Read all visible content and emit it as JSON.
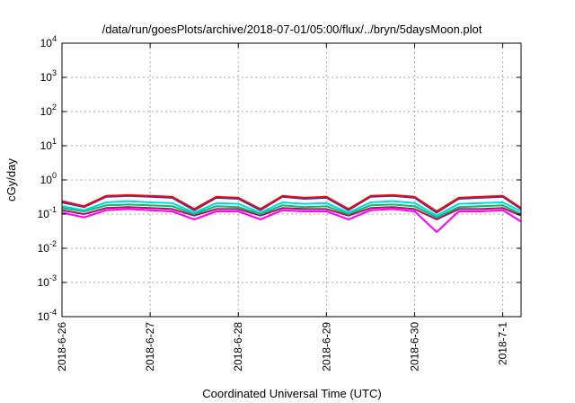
{
  "chart_data": {
    "type": "line",
    "title": "/data/run/goesPlots/archive/2018-07-01/05:00/flux/../bryn/5daysMoon.plot",
    "xlabel": "Coordinated Universal Time (UTC)",
    "ylabel": "cGy/day",
    "yscale": "log",
    "ylim": [
      0.0001,
      10000
    ],
    "xlim": [
      "2018-06-26 00:00",
      "2018-07-01 05:00"
    ],
    "grid": true,
    "y_ticks": [
      {
        "value": 0.0001,
        "base": "10",
        "exp": "-4"
      },
      {
        "value": 0.001,
        "base": "10",
        "exp": "-3"
      },
      {
        "value": 0.01,
        "base": "10",
        "exp": "-2"
      },
      {
        "value": 0.1,
        "base": "10",
        "exp": "-1"
      },
      {
        "value": 1,
        "base": "10",
        "exp": "0"
      },
      {
        "value": 10,
        "base": "10",
        "exp": "1"
      },
      {
        "value": 100,
        "base": "10",
        "exp": "2"
      },
      {
        "value": 1000,
        "base": "10",
        "exp": "3"
      },
      {
        "value": 10000,
        "base": "10",
        "exp": "4"
      }
    ],
    "x_ticks": [
      "2018-6-26",
      "2018-6-27",
      "2018-6-28",
      "2018-6-29",
      "2018-6-30",
      "2018-7-1"
    ],
    "x": [
      "2018-06-26 00:00",
      "2018-06-26 06:00",
      "2018-06-26 12:00",
      "2018-06-26 18:00",
      "2018-06-27 00:00",
      "2018-06-27 06:00",
      "2018-06-27 12:00",
      "2018-06-27 18:00",
      "2018-06-28 00:00",
      "2018-06-28 06:00",
      "2018-06-28 12:00",
      "2018-06-28 18:00",
      "2018-06-29 00:00",
      "2018-06-29 06:00",
      "2018-06-29 12:00",
      "2018-06-29 18:00",
      "2018-06-30 00:00",
      "2018-06-30 06:00",
      "2018-06-30 12:00",
      "2018-06-30 18:00",
      "2018-07-01 00:00",
      "2018-07-01 05:00"
    ],
    "series": [
      {
        "color": "#ff0000",
        "values": [
          0.24,
          0.17,
          0.34,
          0.36,
          0.34,
          0.32,
          0.14,
          0.32,
          0.3,
          0.14,
          0.34,
          0.3,
          0.32,
          0.14,
          0.34,
          0.36,
          0.32,
          0.12,
          0.3,
          0.32,
          0.34,
          0.15
        ]
      },
      {
        "color": "#1a3fd0",
        "values": [
          0.22,
          0.16,
          0.32,
          0.34,
          0.32,
          0.3,
          0.13,
          0.3,
          0.28,
          0.13,
          0.32,
          0.28,
          0.3,
          0.13,
          0.32,
          0.34,
          0.3,
          0.11,
          0.28,
          0.3,
          0.32,
          0.14
        ]
      },
      {
        "color": "#00d8e0",
        "values": [
          0.17,
          0.13,
          0.22,
          0.24,
          0.22,
          0.21,
          0.11,
          0.21,
          0.2,
          0.11,
          0.22,
          0.2,
          0.21,
          0.11,
          0.22,
          0.24,
          0.21,
          0.09,
          0.2,
          0.21,
          0.22,
          0.12
        ]
      },
      {
        "color": "#00c060",
        "values": [
          0.15,
          0.12,
          0.18,
          0.19,
          0.18,
          0.17,
          0.1,
          0.17,
          0.16,
          0.1,
          0.18,
          0.16,
          0.17,
          0.1,
          0.18,
          0.19,
          0.17,
          0.08,
          0.16,
          0.17,
          0.18,
          0.1
        ]
      },
      {
        "color": "#c0006a",
        "values": [
          0.13,
          0.1,
          0.15,
          0.16,
          0.15,
          0.14,
          0.09,
          0.14,
          0.14,
          0.09,
          0.15,
          0.14,
          0.14,
          0.09,
          0.15,
          0.16,
          0.14,
          0.07,
          0.14,
          0.14,
          0.15,
          0.09
        ]
      },
      {
        "color": "#ff00ff",
        "values": [
          0.11,
          0.08,
          0.13,
          0.14,
          0.13,
          0.12,
          0.07,
          0.12,
          0.12,
          0.07,
          0.13,
          0.12,
          0.12,
          0.07,
          0.13,
          0.14,
          0.12,
          0.03,
          0.12,
          0.12,
          0.13,
          0.06
        ]
      }
    ]
  }
}
